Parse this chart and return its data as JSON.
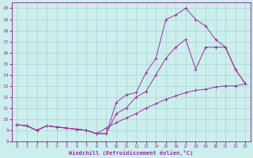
{
  "xlabel": "Windchill (Refroidissement éolien,°C)",
  "xlim": [
    -0.5,
    23.5
  ],
  "ylim": [
    8,
    20.5
  ],
  "xticks": [
    0,
    1,
    2,
    3,
    4,
    5,
    6,
    7,
    8,
    9,
    10,
    11,
    12,
    13,
    14,
    15,
    16,
    17,
    18,
    19,
    20,
    21,
    22,
    23
  ],
  "yticks": [
    8,
    9,
    10,
    11,
    12,
    13,
    14,
    15,
    16,
    17,
    18,
    19,
    20
  ],
  "line_color": "#993399",
  "bg_color": "#cceeed",
  "grid_color": "#aad4d4",
  "lines": [
    {
      "x": [
        0,
        1,
        2,
        3,
        4,
        5,
        6,
        7,
        8,
        9,
        10,
        11,
        12,
        13,
        14,
        15,
        16,
        17,
        18,
        19,
        20,
        21,
        22,
        23
      ],
      "y": [
        9.5,
        9.4,
        9.0,
        9.4,
        9.3,
        9.2,
        9.1,
        9.0,
        8.7,
        9.2,
        9.7,
        10.1,
        10.5,
        11.0,
        11.4,
        11.8,
        12.1,
        12.4,
        12.6,
        12.7,
        12.9,
        13.0,
        13.0,
        13.2
      ]
    },
    {
      "x": [
        0,
        1,
        2,
        3,
        4,
        5,
        6,
        7,
        8,
        9,
        10,
        11,
        12,
        13,
        14,
        15,
        16,
        17,
        18,
        19,
        20,
        21,
        22,
        23
      ],
      "y": [
        9.5,
        9.4,
        9.0,
        9.4,
        9.3,
        9.2,
        9.1,
        9.0,
        8.7,
        8.7,
        10.5,
        11.0,
        12.0,
        12.5,
        14.0,
        15.5,
        16.5,
        17.2,
        14.5,
        16.5,
        16.5,
        16.5,
        14.5,
        13.2
      ]
    },
    {
      "x": [
        0,
        1,
        2,
        3,
        4,
        5,
        6,
        7,
        8,
        9,
        10,
        11,
        12,
        13,
        14,
        15,
        16,
        17,
        18,
        19,
        20,
        21,
        22,
        23
      ],
      "y": [
        9.5,
        9.4,
        9.0,
        9.4,
        9.3,
        9.2,
        9.1,
        9.0,
        8.7,
        8.7,
        11.5,
        12.2,
        12.4,
        14.2,
        15.5,
        19.0,
        19.4,
        20.0,
        19.0,
        18.4,
        17.2,
        16.5,
        14.5,
        13.2
      ]
    }
  ]
}
